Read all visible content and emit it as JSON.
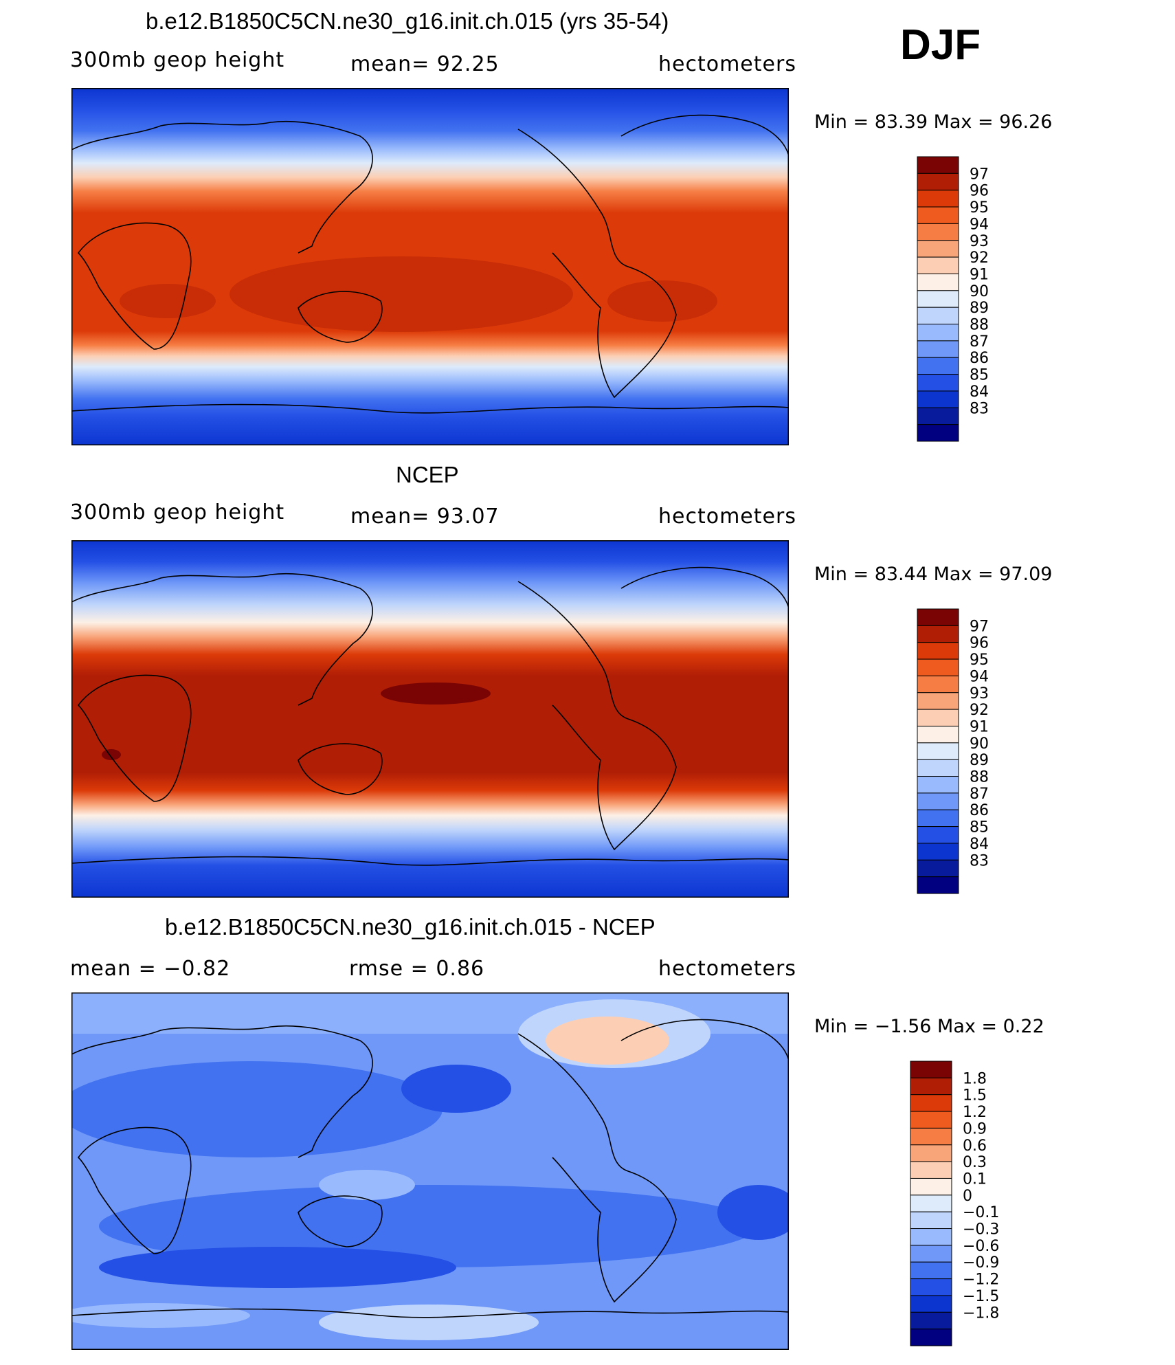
{
  "season": "DJF",
  "panels": [
    {
      "title": "b.e12.B1850C5CN.ne30_g16.init.ch.015 (yrs 35-54)",
      "left": "300mb geop height",
      "mid": "mean=  92.25",
      "right": "hectometers",
      "minmax": "Min =   83.39 Max =   96.26"
    },
    {
      "title": "NCEP",
      "left": "300mb geop height",
      "mid": "mean=  93.07",
      "right": "hectometers",
      "minmax": "Min =   83.44 Max =   97.09"
    },
    {
      "title": "b.e12.B1850C5CN.ne30_g16.init.ch.015 - NCEP",
      "left": "mean =   −0.82",
      "mid": "rmse =    0.86",
      "right": "hectometers",
      "minmax": "Min =  −1.56 Max =    0.22"
    }
  ],
  "colorbars": {
    "field": {
      "colors": [
        "#7a0403",
        "#b01e06",
        "#dc3a08",
        "#ef5a1e",
        "#f67e45",
        "#f9a57a",
        "#fccfb4",
        "#fdf0e6",
        "#ddebfb",
        "#bfd5fb",
        "#99bafc",
        "#6f98f8",
        "#4272f0",
        "#2450e5",
        "#0c35d0",
        "#081b9c",
        "#000080"
      ],
      "labels": [
        "97",
        "96",
        "95",
        "94",
        "93",
        "92",
        "91",
        "90",
        "89",
        "88",
        "87",
        "86",
        "85",
        "84",
        "83"
      ]
    },
    "diff": {
      "colors": [
        "#7a0403",
        "#b01e06",
        "#dc3a08",
        "#ef5a1e",
        "#f67e45",
        "#f9a57a",
        "#fccfb4",
        "#fdf0e6",
        "#ddebfb",
        "#bfd5fb",
        "#99bafc",
        "#6f98f8",
        "#4272f0",
        "#2450e5",
        "#0c35d0",
        "#081b9c",
        "#000080"
      ],
      "labels": [
        "1.8",
        "1.5",
        "1.2",
        "0.9",
        "0.6",
        "0.3",
        "0.1",
        "0",
        "−0.1",
        "−0.3",
        "−0.6",
        "−0.9",
        "−1.2",
        "−1.5",
        "−1.8"
      ]
    }
  }
}
